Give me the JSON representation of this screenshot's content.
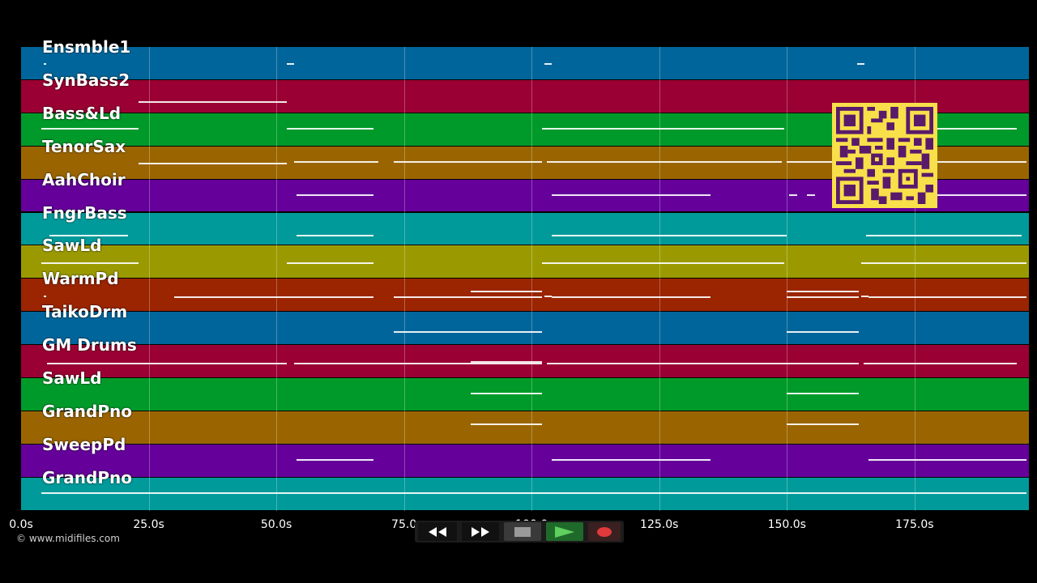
{
  "copyright": "© www.midifiles.com",
  "timeline": {
    "tick_labels": [
      "0.0s",
      "25.0s",
      "50.0s",
      "75.0",
      "100.0",
      "125.0s",
      "150.0s",
      "175.0s"
    ],
    "tick_seconds": [
      0,
      25,
      50,
      75,
      100,
      125,
      150,
      175
    ],
    "max_seconds": 197.4
  },
  "tracks": [
    {
      "name": "Ensmble1",
      "color": "#00659a",
      "notes": [
        [
          4.5,
          4.9,
          0.55
        ],
        [
          52,
          53.5,
          0.55
        ],
        [
          102.5,
          104,
          0.55
        ],
        [
          163.8,
          165.2,
          0.55
        ]
      ]
    },
    {
      "name": "SynBass2",
      "color": "#9a0033",
      "notes": [
        [
          23,
          52,
          0.72
        ]
      ]
    },
    {
      "name": "Bass&Ld",
      "color": "#009a2a",
      "notes": [
        [
          4,
          23,
          0.5
        ],
        [
          52,
          69,
          0.5
        ],
        [
          102,
          149.5,
          0.5
        ],
        [
          164.5,
          195,
          0.5
        ]
      ]
    },
    {
      "name": "TenorSax",
      "color": "#9a6500",
      "notes": [
        [
          23,
          52,
          0.55
        ],
        [
          53.5,
          70,
          0.5
        ],
        [
          73,
          102,
          0.5
        ],
        [
          103,
          149,
          0.5
        ],
        [
          150,
          197,
          0.5
        ]
      ]
    },
    {
      "name": "AahChoir",
      "color": "#65009a",
      "notes": [
        [
          54,
          69,
          0.5
        ],
        [
          104,
          135,
          0.5
        ],
        [
          150.5,
          152,
          0.5
        ],
        [
          154,
          155.5,
          0.5
        ],
        [
          165,
          197,
          0.5
        ]
      ]
    },
    {
      "name": "FngrBass",
      "color": "#009a9a",
      "notes": [
        [
          5.5,
          21,
          0.75
        ],
        [
          54,
          69,
          0.75
        ],
        [
          104,
          150,
          0.75
        ],
        [
          165.5,
          196,
          0.75
        ]
      ]
    },
    {
      "name": "SawLd",
      "color": "#9a9a00",
      "notes": [
        [
          4,
          23,
          0.55
        ],
        [
          52,
          69,
          0.55
        ],
        [
          102,
          149.5,
          0.55
        ],
        [
          164.5,
          197,
          0.55
        ]
      ]
    },
    {
      "name": "WarmPd",
      "color": "#9a2500",
      "notes": [
        [
          4.5,
          5,
          0.55
        ],
        [
          30,
          53,
          0.6
        ],
        [
          53,
          69,
          0.6
        ],
        [
          73,
          102,
          0.6
        ],
        [
          88,
          102,
          0.4
        ],
        [
          102.5,
          104,
          0.55
        ],
        [
          104,
          135,
          0.6
        ],
        [
          150,
          164,
          0.4
        ],
        [
          150,
          164,
          0.6
        ],
        [
          164.5,
          166,
          0.55
        ],
        [
          166,
          197,
          0.6
        ]
      ]
    },
    {
      "name": "TaikoDrm",
      "color": "#00659a",
      "notes": [
        [
          73,
          102,
          0.65
        ],
        [
          150,
          164,
          0.65
        ]
      ]
    },
    {
      "name": "GM Drums",
      "color": "#9a0033",
      "notes": [
        [
          5,
          21,
          0.6
        ],
        [
          21,
          52,
          0.6
        ],
        [
          53.5,
          67.5,
          0.6
        ],
        [
          67.5,
          102,
          0.6
        ],
        [
          88,
          102,
          0.55
        ],
        [
          103,
          135,
          0.6
        ],
        [
          135,
          164,
          0.6
        ],
        [
          165,
          195,
          0.6
        ]
      ]
    },
    {
      "name": "SawLd",
      "color": "#009a2a",
      "notes": [
        [
          88,
          102,
          0.5
        ],
        [
          150,
          164,
          0.5
        ]
      ]
    },
    {
      "name": "GrandPno",
      "color": "#9a6500",
      "notes": [
        [
          88,
          102,
          0.42
        ],
        [
          150,
          164,
          0.42
        ]
      ]
    },
    {
      "name": "SweepPd",
      "color": "#65009a",
      "notes": [
        [
          54,
          69,
          0.5
        ],
        [
          104,
          135,
          0.5
        ],
        [
          166,
          197,
          0.5
        ]
      ]
    },
    {
      "name": "GrandPno",
      "color": "#009a9a",
      "notes": [
        [
          4,
          197,
          0.5
        ]
      ]
    }
  ],
  "controls": {
    "rewind": "rewind-icon",
    "fast_forward": "fast-forward-icon",
    "stop": "stop-icon",
    "play": "play-icon",
    "record": "record-icon"
  }
}
